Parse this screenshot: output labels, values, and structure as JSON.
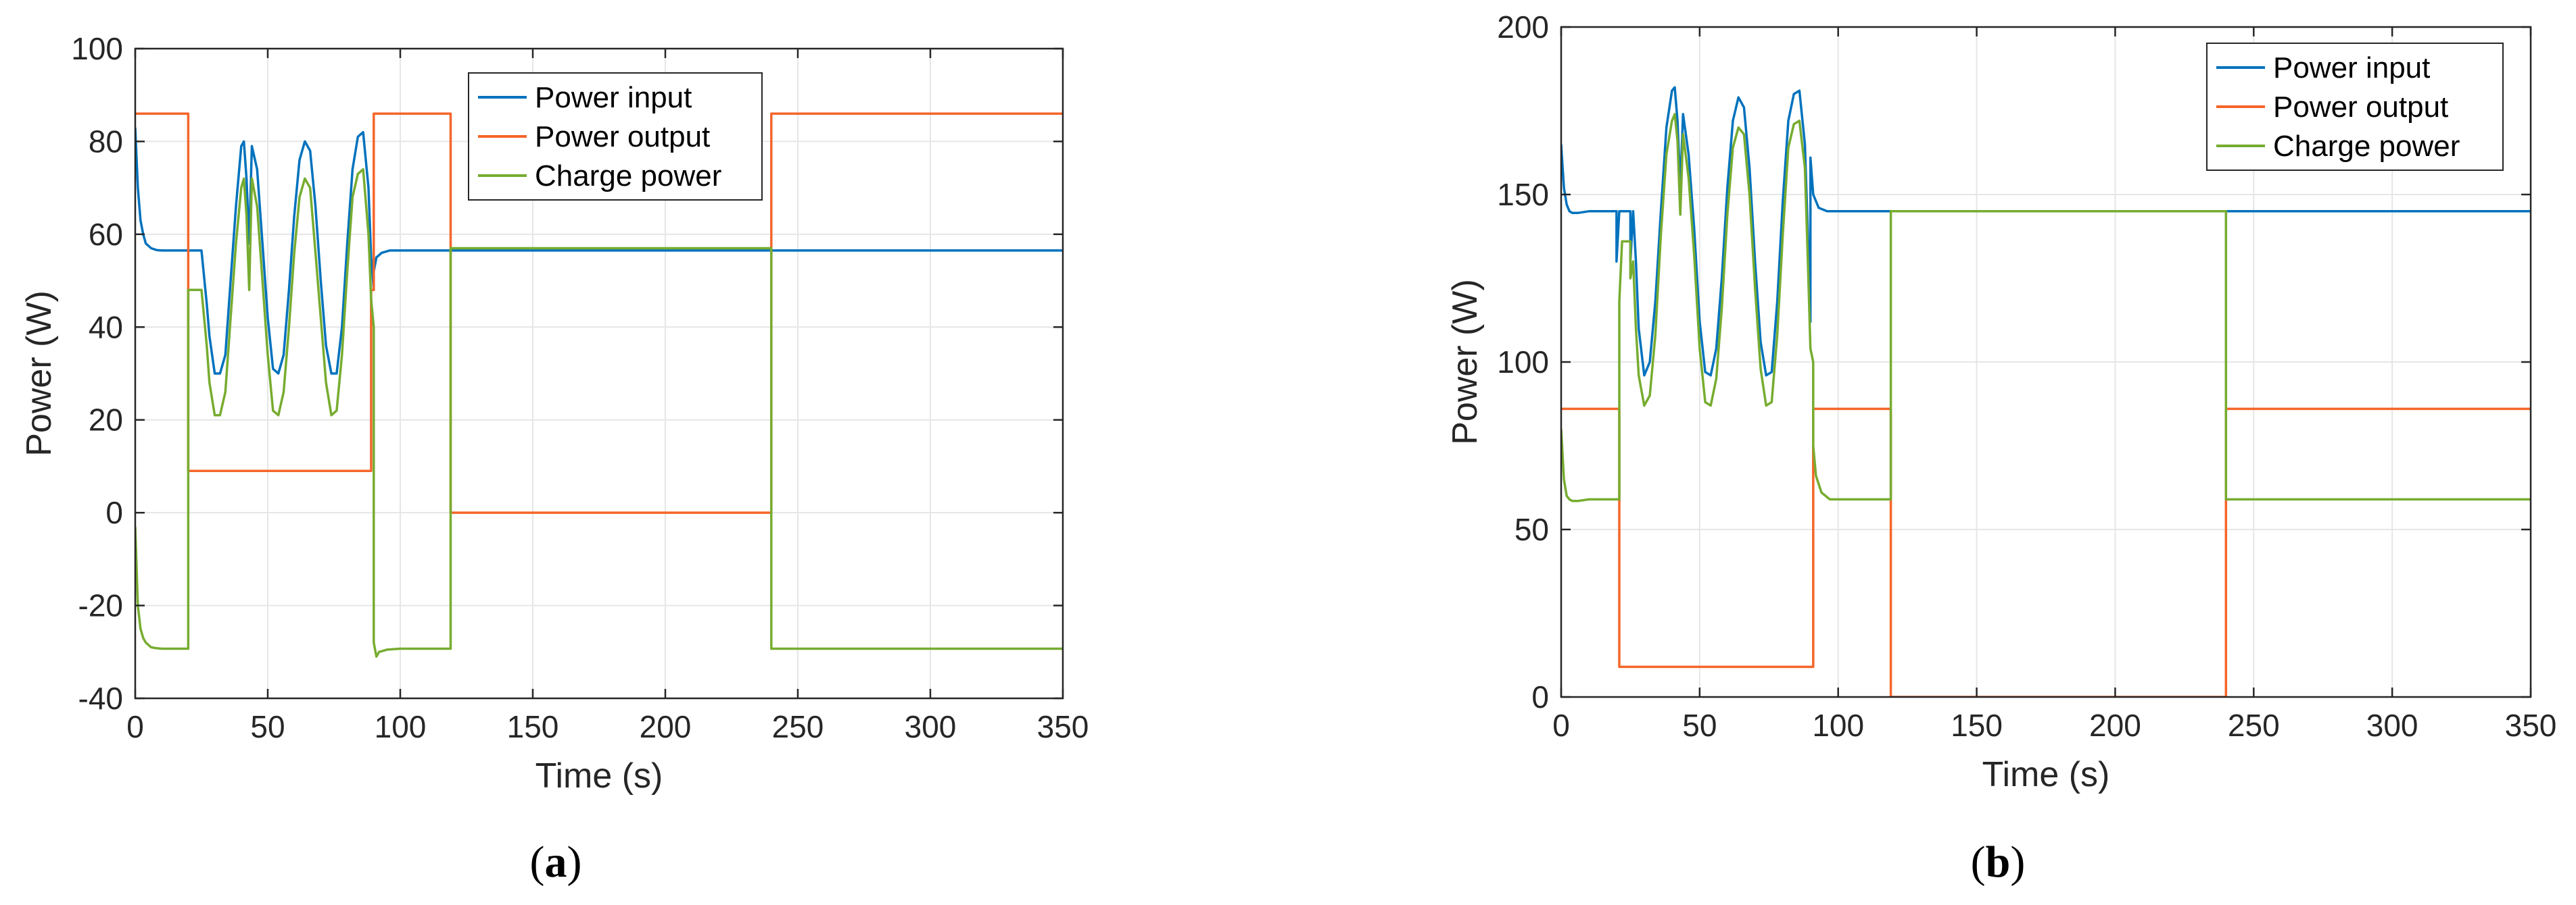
{
  "colors": {
    "power_input": "#0072BD",
    "power_output": "#F5652A",
    "charge_power": "#77AC30",
    "grid": "#E6E6E6",
    "axis": "#262626"
  },
  "chart_data": [
    {
      "type": "line",
      "caption": "(a)",
      "caption_prefix": "(",
      "caption_letter": "a",
      "caption_suffix": ")",
      "xlabel": "Time (s)",
      "ylabel": "Power (W)",
      "xlim": [
        0,
        350
      ],
      "ylim": [
        -40,
        100
      ],
      "xticks": [
        0,
        50,
        100,
        150,
        200,
        250,
        300,
        350
      ],
      "yticks": [
        -40,
        -20,
        0,
        20,
        40,
        60,
        80,
        100
      ],
      "grid": true,
      "legend_position": "top-right",
      "series": [
        {
          "name": "Power input",
          "x": [
            0,
            1,
            2,
            3,
            4,
            6,
            8,
            10,
            14,
            20,
            20,
            25,
            27,
            28,
            30,
            32,
            34,
            36,
            38,
            40,
            41,
            42,
            43,
            44,
            46,
            48,
            50,
            52,
            54,
            56,
            58,
            60,
            62,
            64,
            66,
            68,
            70,
            72,
            74,
            76,
            78,
            80,
            82,
            84,
            86,
            88,
            89,
            90,
            90,
            91,
            93,
            96,
            100,
            118,
            118,
            240,
            240,
            350
          ],
          "y": [
            83,
            70,
            63,
            60,
            58,
            57,
            56.6,
            56.5,
            56.5,
            56.5,
            56.5,
            56.5,
            45,
            38,
            30,
            30,
            34,
            50,
            66,
            79,
            80,
            72,
            58,
            79,
            74,
            58,
            42,
            31,
            30,
            34,
            48,
            64,
            76,
            80,
            78,
            66,
            50,
            36,
            30,
            30,
            40,
            58,
            74,
            81,
            82,
            70,
            55,
            48,
            52,
            55,
            56,
            56.5,
            56.5,
            56.5,
            56.5,
            56.5,
            56.5,
            56.5
          ]
        },
        {
          "name": "Power output",
          "x": [
            0,
            20,
            20,
            89,
            89,
            90,
            90,
            119,
            119,
            240,
            240,
            350
          ],
          "y": [
            86,
            86,
            9,
            9,
            48,
            48,
            86,
            86,
            0,
            0,
            86,
            86
          ]
        },
        {
          "name": "Charge power",
          "x": [
            0,
            1,
            2,
            3,
            4,
            6,
            8,
            10,
            14,
            20,
            20,
            21,
            24,
            25,
            27,
            28,
            30,
            32,
            34,
            36,
            38,
            40,
            41,
            42,
            43,
            44,
            46,
            48,
            50,
            52,
            54,
            56,
            58,
            60,
            62,
            64,
            66,
            68,
            70,
            72,
            74,
            76,
            78,
            80,
            82,
            84,
            86,
            88,
            89,
            90,
            90,
            91,
            92,
            95,
            100,
            119,
            119,
            240,
            240,
            350
          ],
          "y": [
            -3,
            -20,
            -25,
            -27,
            -28,
            -29,
            -29.2,
            -29.3,
            -29.3,
            -29.3,
            48,
            48,
            48,
            48,
            36,
            28,
            21,
            21,
            26,
            42,
            58,
            70,
            72,
            64,
            48,
            72,
            66,
            50,
            34,
            22,
            21,
            26,
            40,
            56,
            68,
            72,
            70,
            56,
            42,
            28,
            21,
            22,
            34,
            52,
            68,
            73,
            74,
            60,
            46,
            40,
            -28,
            -31,
            -30,
            -29.5,
            -29.3,
            -29.3,
            57,
            57,
            -29.3,
            -29.3
          ]
        }
      ]
    },
    {
      "type": "line",
      "caption": "(b)",
      "caption_prefix": "(",
      "caption_letter": "b",
      "caption_suffix": ")",
      "xlabel": "Time (s)",
      "ylabel": "Power (W)",
      "xlim": [
        0,
        350
      ],
      "ylim": [
        0,
        200
      ],
      "xticks": [
        0,
        50,
        100,
        150,
        200,
        250,
        300,
        350
      ],
      "yticks": [
        0,
        50,
        100,
        150,
        200
      ],
      "grid": true,
      "legend_position": "top-right",
      "series": [
        {
          "name": "Power input",
          "x": [
            0,
            1,
            2,
            3,
            4,
            6,
            10,
            15,
            20,
            20,
            21,
            21,
            22,
            25,
            25,
            26,
            27,
            28,
            30,
            32,
            34,
            36,
            38,
            40,
            41,
            42,
            43,
            44,
            46,
            48,
            50,
            52,
            54,
            56,
            58,
            60,
            62,
            64,
            66,
            68,
            70,
            72,
            74,
            76,
            78,
            80,
            82,
            84,
            86,
            88,
            89,
            90,
            90,
            91,
            93,
            96,
            100,
            350
          ],
          "y": [
            165,
            152,
            147,
            145,
            144.5,
            144.5,
            145,
            145,
            145,
            130,
            145,
            145,
            145,
            145,
            130,
            145,
            130,
            110,
            96,
            100,
            118,
            145,
            170,
            181,
            182,
            172,
            152,
            174,
            162,
            140,
            112,
            97,
            96,
            104,
            125,
            152,
            172,
            179,
            176,
            158,
            130,
            106,
            96,
            97,
            118,
            148,
            172,
            180,
            181,
            165,
            140,
            112,
            161,
            150,
            146,
            145,
            145,
            145
          ]
        },
        {
          "name": "Power output",
          "x": [
            0,
            21,
            21,
            91,
            91,
            119,
            119,
            240,
            240,
            350
          ],
          "y": [
            86,
            86,
            9,
            9,
            86,
            86,
            0,
            0,
            86,
            86
          ]
        },
        {
          "name": "Charge power",
          "x": [
            0,
            1,
            2,
            3,
            4,
            6,
            10,
            15,
            21,
            21,
            22,
            22,
            24,
            25,
            25,
            26,
            27,
            28,
            30,
            32,
            34,
            36,
            38,
            40,
            41,
            42,
            43,
            44,
            46,
            48,
            50,
            52,
            54,
            56,
            58,
            60,
            62,
            64,
            66,
            68,
            70,
            72,
            74,
            76,
            78,
            80,
            82,
            84,
            86,
            88,
            89,
            90,
            91,
            91,
            92,
            94,
            97,
            100,
            119,
            119,
            240,
            240,
            350
          ],
          "y": [
            80,
            65,
            60,
            59,
            58.5,
            58.5,
            59,
            59,
            59,
            118,
            136,
            136,
            136,
            136,
            125,
            130,
            110,
            96,
            87,
            90,
            108,
            138,
            162,
            172,
            174,
            166,
            144,
            168,
            155,
            132,
            104,
            88,
            87,
            95,
            116,
            144,
            164,
            170,
            168,
            150,
            122,
            98,
            87,
            88,
            108,
            138,
            164,
            171,
            172,
            158,
            132,
            104,
            100,
            75,
            66,
            61,
            59,
            59,
            59,
            145,
            145,
            59,
            59
          ]
        }
      ]
    }
  ]
}
